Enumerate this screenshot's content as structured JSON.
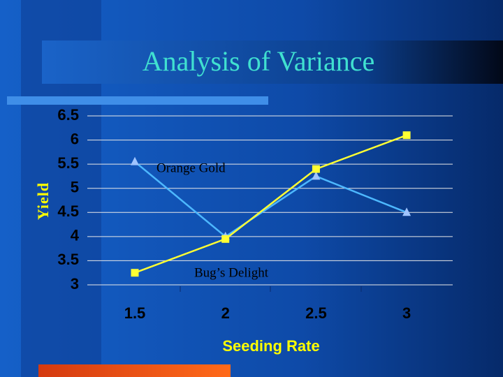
{
  "chart_data": {
    "type": "line",
    "title": "Analysis of Variance",
    "x_label": "Seeding Rate",
    "y_label": "Yield",
    "categories": [
      "1.5",
      "2",
      "2.5",
      "3"
    ],
    "series": [
      {
        "name": "Orange Gold",
        "color": "#4db8ff",
        "marker": "triangle",
        "values": [
          5.55,
          4.0,
          5.25,
          4.5
        ]
      },
      {
        "name": "Bug’s Delight",
        "color": "#ffff33",
        "marker": "square",
        "values": [
          3.25,
          3.95,
          5.4,
          6.1
        ]
      }
    ],
    "ylim": [
      3,
      6.5
    ],
    "yticks": [
      3,
      3.5,
      4,
      4.5,
      5,
      5.5,
      6,
      6.5
    ],
    "grid": true
  }
}
